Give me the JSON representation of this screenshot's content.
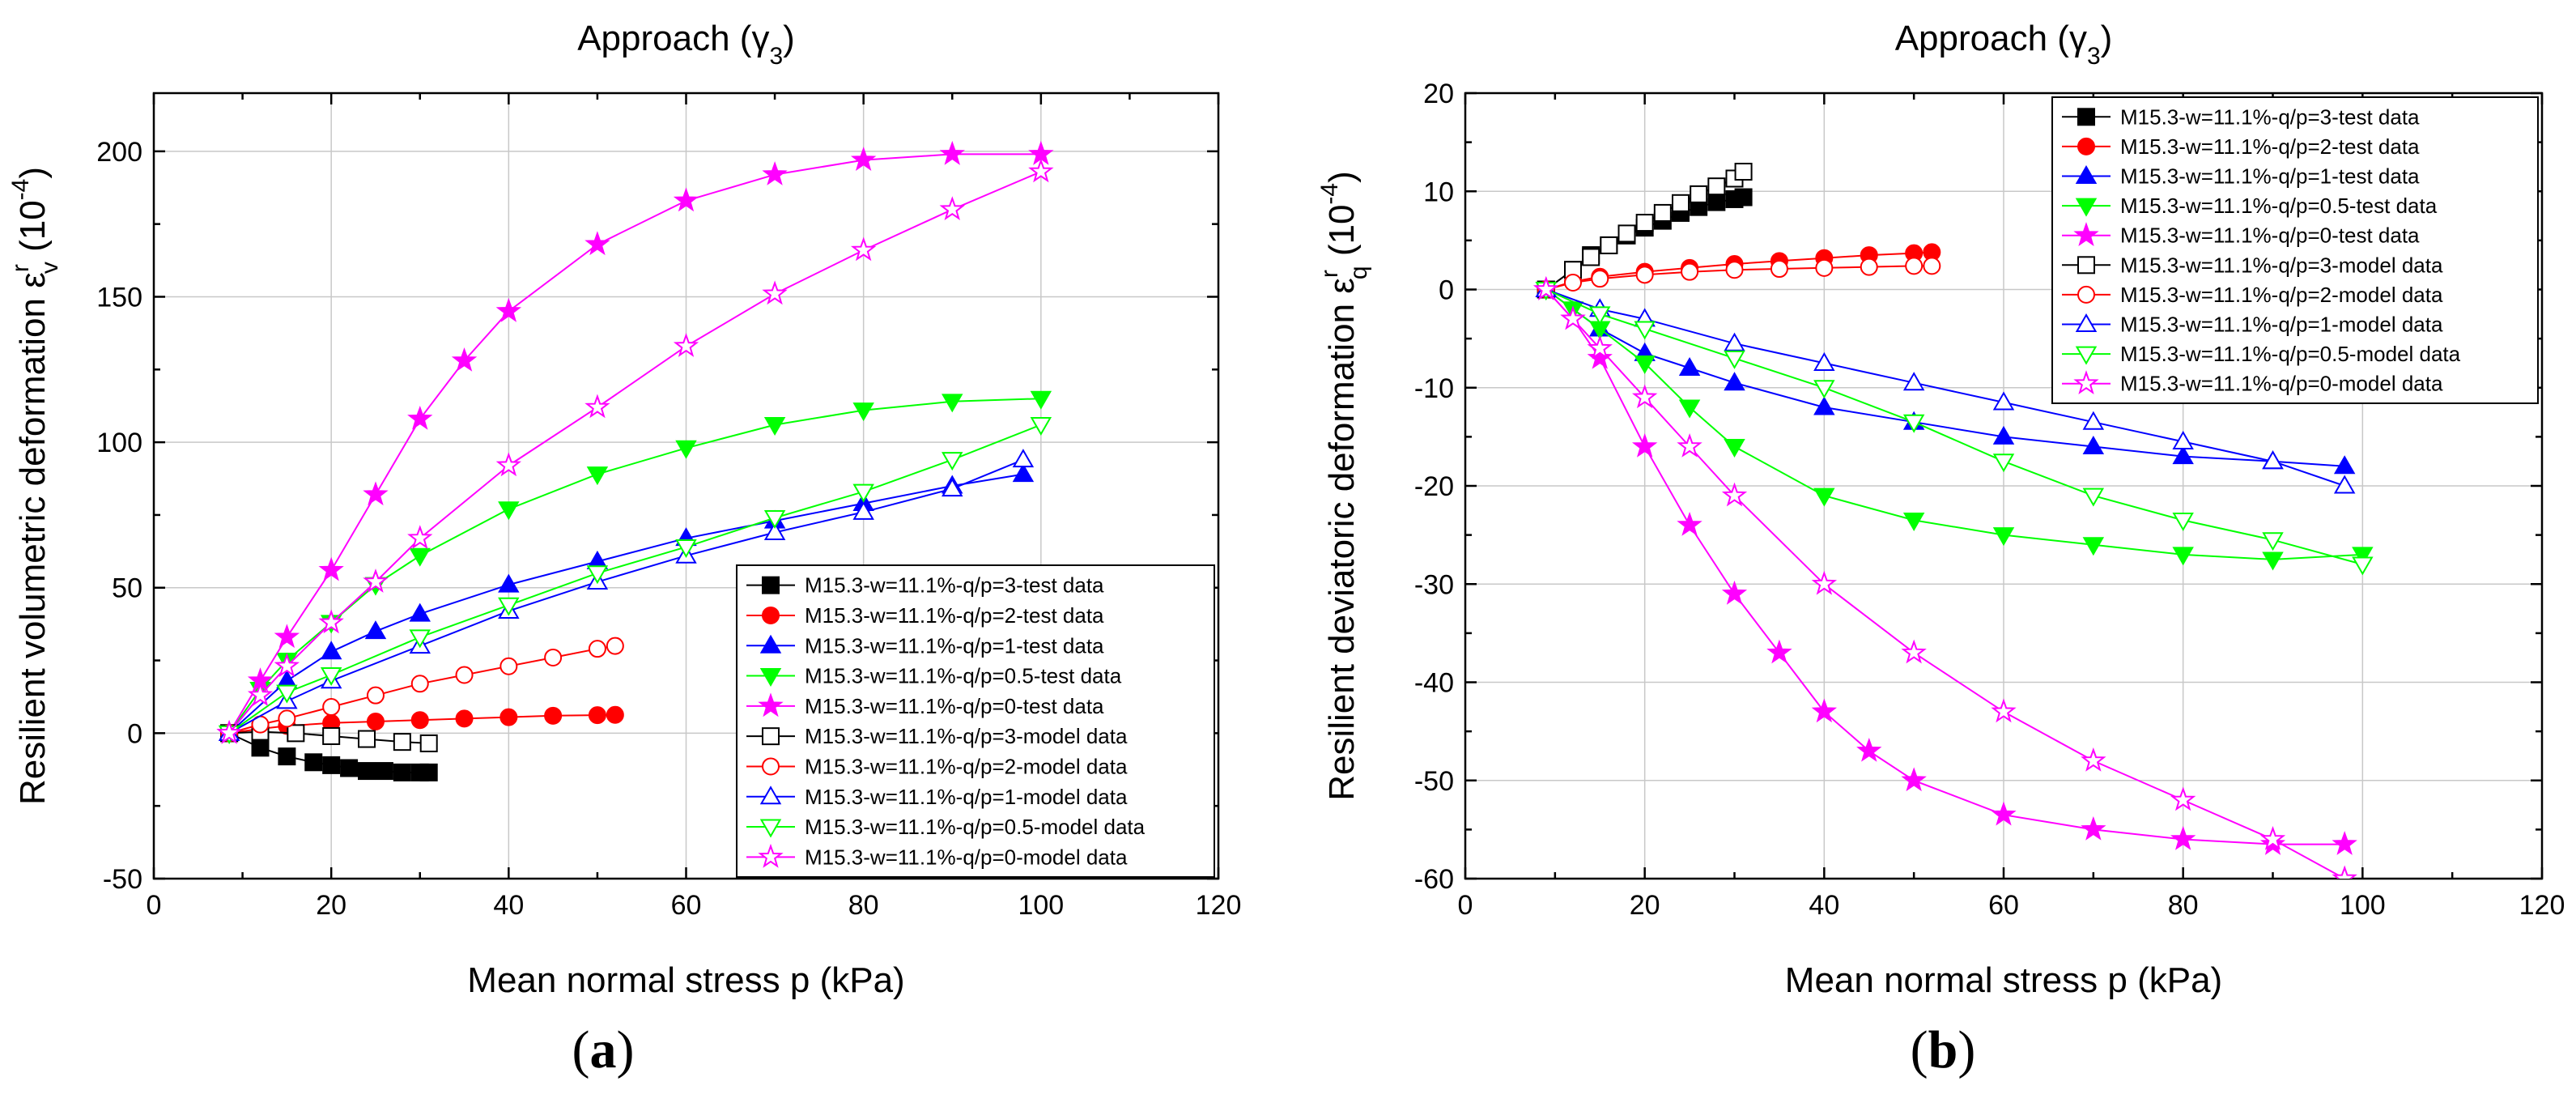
{
  "chart_data": [
    {
      "type": "line",
      "panel_label": "a",
      "title": "Approach (γ3)",
      "title_prefix": "Approach (",
      "title_symbol": "γ",
      "title_subscript": "3",
      "title_suffix": ")",
      "xlabel": "Mean normal stress p (kPa)",
      "ylabel_prefix": "Resilient volumetric deformation ",
      "ylabel_symbol": "ε",
      "ylabel_superscript": "r",
      "ylabel_subscript": "v",
      "ylabel_unit": " (10",
      "ylabel_unit_exp": "-4",
      "ylabel_unit_close": ")",
      "xlim": [
        0,
        120
      ],
      "ylim": [
        -50,
        220
      ],
      "xticks": [
        0,
        20,
        40,
        60,
        80,
        100,
        120
      ],
      "yticks": [
        -50,
        0,
        50,
        100,
        150,
        200
      ],
      "grid": true,
      "legend_position": "bottom-right",
      "series": [
        {
          "name": "M15.3-w=11.1%-q/p=3-test data",
          "color": "#000000",
          "marker": "square",
          "filled": true,
          "x": [
            8.5,
            12,
            15,
            18,
            20,
            22,
            24,
            26,
            28,
            30,
            31
          ],
          "y": [
            0,
            -5,
            -8,
            -10,
            -11,
            -12,
            -13,
            -13,
            -13.5,
            -13.5,
            -13.5
          ]
        },
        {
          "name": "M15.3-w=11.1%-q/p=2-test data",
          "color": "#ff0000",
          "marker": "circle",
          "filled": true,
          "x": [
            8.5,
            12,
            15,
            20,
            25,
            30,
            35,
            40,
            45,
            50,
            52
          ],
          "y": [
            0,
            1.5,
            2.5,
            3.5,
            4,
            4.5,
            5,
            5.5,
            6,
            6.2,
            6.3
          ]
        },
        {
          "name": "M15.3-w=11.1%-q/p=1-test data",
          "color": "#0000ff",
          "marker": "triangle-up",
          "filled": true,
          "x": [
            8.5,
            15,
            20,
            25,
            30,
            40,
            50,
            60,
            70,
            80,
            90,
            98
          ],
          "y": [
            0,
            18,
            28,
            35,
            41,
            51,
            59,
            67,
            73,
            79,
            85,
            89
          ]
        },
        {
          "name": "M15.3-w=11.1%-q/p=0.5-test data",
          "color": "#00ff00",
          "marker": "triangle-down",
          "filled": true,
          "x": [
            8.5,
            12,
            15,
            20,
            25,
            30,
            40,
            50,
            60,
            70,
            80,
            90,
            100
          ],
          "y": [
            0,
            15,
            25,
            38,
            51,
            61,
            77,
            89,
            98,
            106,
            111,
            114,
            115
          ]
        },
        {
          "name": "M15.3-w=11.1%-q/p=0-test data",
          "color": "#ff00ff",
          "marker": "star",
          "filled": true,
          "x": [
            8.5,
            12,
            15,
            20,
            25,
            30,
            35,
            40,
            50,
            60,
            70,
            80,
            90,
            100
          ],
          "y": [
            0,
            18,
            33,
            56,
            82,
            108,
            128,
            145,
            168,
            183,
            192,
            197,
            199,
            199
          ]
        },
        {
          "name": "M15.3-w=11.1%-q/p=3-model data",
          "color": "#000000",
          "marker": "square",
          "filled": false,
          "x": [
            8.5,
            12,
            16,
            20,
            24,
            28,
            31
          ],
          "y": [
            0,
            0.5,
            0,
            -1,
            -2,
            -3,
            -3.5
          ]
        },
        {
          "name": "M15.3-w=11.1%-q/p=2-model data",
          "color": "#ff0000",
          "marker": "circle",
          "filled": false,
          "x": [
            8.5,
            12,
            15,
            20,
            25,
            30,
            35,
            40,
            45,
            50,
            52
          ],
          "y": [
            0,
            3,
            5,
            9,
            13,
            17,
            20,
            23,
            26,
            29,
            30
          ]
        },
        {
          "name": "M15.3-w=11.1%-q/p=1-model data",
          "color": "#0000ff",
          "marker": "triangle-up",
          "filled": false,
          "x": [
            8.5,
            15,
            20,
            30,
            40,
            50,
            60,
            70,
            80,
            90,
            98
          ],
          "y": [
            0,
            11,
            18,
            30,
            42,
            52,
            61,
            69,
            76,
            84,
            94
          ]
        },
        {
          "name": "M15.3-w=11.1%-q/p=0.5-model data",
          "color": "#00ff00",
          "marker": "triangle-down",
          "filled": false,
          "x": [
            8.5,
            15,
            20,
            30,
            40,
            50,
            60,
            70,
            80,
            90,
            100
          ],
          "y": [
            0,
            14,
            20,
            33,
            44,
            55,
            64,
            74,
            83,
            94,
            106
          ]
        },
        {
          "name": "M15.3-w=11.1%-q/p=0-model data",
          "color": "#ff00ff",
          "marker": "star",
          "filled": false,
          "x": [
            8.5,
            12,
            15,
            20,
            25,
            30,
            40,
            50,
            60,
            70,
            80,
            90,
            100
          ],
          "y": [
            0,
            13,
            23,
            38,
            52,
            67,
            92,
            112,
            133,
            151,
            166,
            180,
            193
          ]
        }
      ]
    },
    {
      "type": "line",
      "panel_label": "b",
      "title": "Approach (γ3)",
      "title_prefix": "Approach (",
      "title_symbol": "γ",
      "title_subscript": "3",
      "title_suffix": ")",
      "xlabel": "Mean normal stress p (kPa)",
      "ylabel_prefix": "Resilient deviatoric deformation ",
      "ylabel_symbol": "ε",
      "ylabel_superscript": "r",
      "ylabel_subscript": "q",
      "ylabel_unit": " (10",
      "ylabel_unit_exp": "-4",
      "ylabel_unit_close": ")",
      "xlim": [
        0,
        120
      ],
      "ylim": [
        -60,
        20
      ],
      "xticks": [
        0,
        20,
        40,
        60,
        80,
        100,
        120
      ],
      "yticks": [
        -60,
        -50,
        -40,
        -30,
        -20,
        -10,
        0,
        10,
        20
      ],
      "grid": true,
      "legend_position": "top-right",
      "series": [
        {
          "name": "M15.3-w=11.1%-q/p=3-test data",
          "color": "#000000",
          "marker": "square",
          "filled": true,
          "x": [
            9,
            12,
            14,
            16,
            18,
            20,
            22,
            24,
            26,
            28,
            30,
            31
          ],
          "y": [
            0,
            2,
            3.5,
            4.5,
            5.5,
            6.3,
            7,
            7.8,
            8.4,
            8.9,
            9.2,
            9.4
          ]
        },
        {
          "name": "M15.3-w=11.1%-q/p=2-test data",
          "color": "#ff0000",
          "marker": "circle",
          "filled": true,
          "x": [
            9,
            12,
            15,
            20,
            25,
            30,
            35,
            40,
            45,
            50,
            52
          ],
          "y": [
            0,
            0.8,
            1.3,
            1.8,
            2.2,
            2.6,
            2.9,
            3.2,
            3.5,
            3.7,
            3.8
          ]
        },
        {
          "name": "M15.3-w=11.1%-q/p=1-test data",
          "color": "#0000ff",
          "marker": "triangle-up",
          "filled": true,
          "x": [
            9,
            15,
            20,
            25,
            30,
            40,
            50,
            60,
            70,
            80,
            90,
            98
          ],
          "y": [
            0,
            -4,
            -6.5,
            -8,
            -9.5,
            -12,
            -13.5,
            -15,
            -16,
            -17,
            -17.5,
            -18
          ]
        },
        {
          "name": "M15.3-w=11.1%-q/p=0.5-test data",
          "color": "#00ff00",
          "marker": "triangle-down",
          "filled": true,
          "x": [
            9,
            12,
            15,
            20,
            25,
            30,
            40,
            50,
            60,
            70,
            80,
            90,
            100
          ],
          "y": [
            0,
            -2,
            -4,
            -7.5,
            -12,
            -16,
            -21,
            -23.5,
            -25,
            -26,
            -27,
            -27.5,
            -27
          ]
        },
        {
          "name": "M15.3-w=11.1%-q/p=0-test data",
          "color": "#ff00ff",
          "marker": "star",
          "filled": true,
          "x": [
            9,
            12,
            15,
            20,
            25,
            30,
            35,
            40,
            45,
            50,
            60,
            70,
            80,
            90,
            98
          ],
          "y": [
            0,
            -3,
            -7,
            -16,
            -24,
            -31,
            -37,
            -43,
            -47,
            -50,
            -53.5,
            -55,
            -56,
            -56.5,
            -56.5
          ]
        },
        {
          "name": "M15.3-w=11.1%-q/p=3-model data",
          "color": "#000000",
          "marker": "square",
          "filled": false,
          "x": [
            9,
            12,
            14,
            16,
            18,
            20,
            22,
            24,
            26,
            28,
            30,
            31
          ],
          "y": [
            0,
            2,
            3.3,
            4.5,
            5.7,
            6.8,
            7.8,
            8.8,
            9.7,
            10.5,
            11.3,
            12
          ]
        },
        {
          "name": "M15.3-w=11.1%-q/p=2-model data",
          "color": "#ff0000",
          "marker": "circle",
          "filled": false,
          "x": [
            9,
            12,
            15,
            20,
            25,
            30,
            35,
            40,
            45,
            50,
            52
          ],
          "y": [
            0,
            0.7,
            1.1,
            1.5,
            1.8,
            2,
            2.1,
            2.2,
            2.3,
            2.4,
            2.4
          ]
        },
        {
          "name": "M15.3-w=11.1%-q/p=1-model data",
          "color": "#0000ff",
          "marker": "triangle-up",
          "filled": false,
          "x": [
            9,
            15,
            20,
            30,
            40,
            50,
            60,
            70,
            80,
            90,
            98
          ],
          "y": [
            0,
            -2,
            -3,
            -5.5,
            -7.5,
            -9.5,
            -11.5,
            -13.5,
            -15.5,
            -17.5,
            -20
          ]
        },
        {
          "name": "M15.3-w=11.1%-q/p=0.5-model data",
          "color": "#00ff00",
          "marker": "triangle-down",
          "filled": false,
          "x": [
            9,
            15,
            20,
            30,
            40,
            50,
            60,
            70,
            80,
            90,
            100
          ],
          "y": [
            0,
            -2.5,
            -4,
            -7,
            -10,
            -13.5,
            -17.5,
            -21,
            -23.5,
            -25.5,
            -28
          ]
        },
        {
          "name": "M15.3-w=11.1%-q/p=0-model data",
          "color": "#ff00ff",
          "marker": "star",
          "filled": false,
          "x": [
            9,
            12,
            15,
            20,
            25,
            30,
            40,
            50,
            60,
            70,
            80,
            90,
            98
          ],
          "y": [
            0,
            -3,
            -6,
            -11,
            -16,
            -21,
            -30,
            -37,
            -43,
            -48,
            -52,
            -56,
            -60
          ]
        }
      ]
    }
  ]
}
